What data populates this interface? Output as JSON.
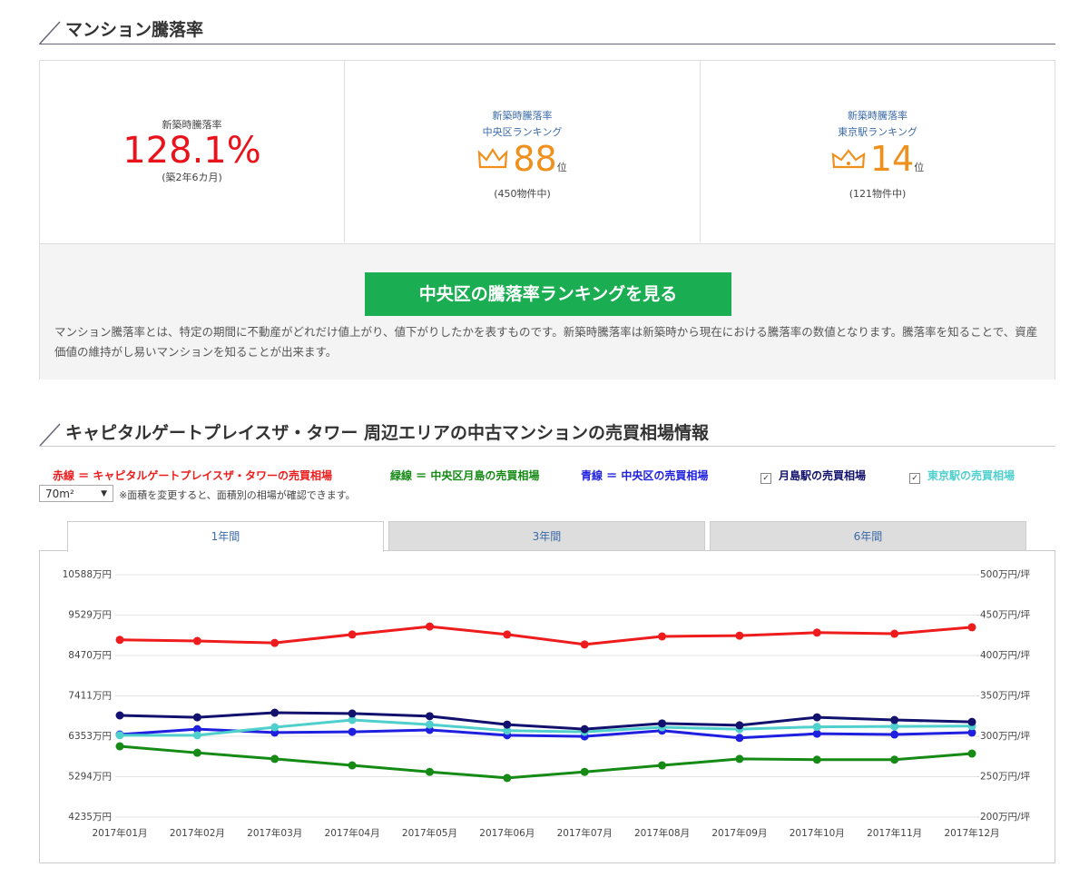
{
  "section1": {
    "title": "マンション騰落率"
  },
  "stats": [
    {
      "label": [
        "新築時騰落率"
      ],
      "value": "128.1%",
      "note": "(築2年6カ月)"
    },
    {
      "label": [
        "新築時騰落率",
        "中央区ランキング"
      ],
      "rank": 88,
      "unit": "位",
      "note": "(450物件中)"
    },
    {
      "label": [
        "新築時騰落率",
        "東京駅ランキング"
      ],
      "rank": 14,
      "unit": "位",
      "note": "(121物件中)"
    }
  ],
  "button": {
    "label": "中央区の騰落率ランキングを見る"
  },
  "description": "マンション騰落率とは、特定の期間に不動産がどれだけ値上がり、値下がりしたかを表すものです。新築時騰落率は新築時から現在における騰落率の数値となります。騰落率を知ることで、資産価値の維持がし易いマンションを知ることが出来ます。",
  "section2": {
    "title": "キャピタルゲートプレイスザ・タワー 周辺エリアの中古マンションの売買相場情報"
  },
  "area_select": {
    "value": "70m²",
    "note": "※面積を変更すると、面積別の相場が確認できます。"
  },
  "tabs": [
    "1年間",
    "3年間",
    "6年間"
  ],
  "chart_data": {
    "type": "line",
    "categories": [
      "2017年01月",
      "2017年02月",
      "2017年03月",
      "2017年04月",
      "2017年05月",
      "2017年06月",
      "2017年07月",
      "2017年08月",
      "2017年09月",
      "2017年10月",
      "2017年11月",
      "2017年12月"
    ],
    "series": [
      {
        "name": "赤線 ＝ キャピタルゲートプレイスザ・タワーの売買相場",
        "color": "#ee1c1c",
        "values": [
          8880,
          8850,
          8800,
          9020,
          9230,
          9020,
          8760,
          8970,
          8990,
          9070,
          9040,
          9210
        ]
      },
      {
        "name": "緑線 ＝ 中央区月島の売買相場",
        "color": "#158a15",
        "values": [
          6090,
          5920,
          5760,
          5590,
          5420,
          5260,
          5420,
          5590,
          5760,
          5740,
          5740,
          5900
        ]
      },
      {
        "name": "青線 ＝ 中央区の売買相場",
        "color": "#1f1fe0",
        "values": [
          6400,
          6540,
          6450,
          6470,
          6520,
          6380,
          6350,
          6500,
          6310,
          6420,
          6400,
          6450
        ]
      },
      {
        "name": "月島駅の売買相場",
        "color": "#12126e",
        "values": [
          6900,
          6850,
          6970,
          6950,
          6880,
          6660,
          6540,
          6690,
          6640,
          6850,
          6780,
          6730
        ]
      },
      {
        "name": "東京駅の売買相場",
        "color": "#4fd0cc",
        "values": [
          6380,
          6380,
          6590,
          6780,
          6660,
          6500,
          6470,
          6590,
          6540,
          6600,
          6610,
          6620
        ]
      }
    ],
    "ylim": [
      4235,
      10588
    ],
    "yticks": [
      {
        "value": 4235,
        "label": "4235万円"
      },
      {
        "value": 5294,
        "label": "5294万円"
      },
      {
        "value": 6353,
        "label": "6353万円"
      },
      {
        "value": 7411,
        "label": "7411万円"
      },
      {
        "value": 8470,
        "label": "8470万円"
      },
      {
        "value": 9529,
        "label": "9529万円"
      },
      {
        "value": 10588,
        "label": "10588万円"
      }
    ],
    "y2lim": [
      200,
      500
    ],
    "y2ticks": [
      {
        "value": 200,
        "label": "200万円/坪"
      },
      {
        "value": 250,
        "label": "250万円/坪"
      },
      {
        "value": 300,
        "label": "300万円/坪"
      },
      {
        "value": 350,
        "label": "350万円/坪"
      },
      {
        "value": 400,
        "label": "400万円/坪"
      },
      {
        "value": 450,
        "label": "450万円/坪"
      },
      {
        "value": 500,
        "label": "500万円/坪"
      }
    ],
    "grid": true
  }
}
